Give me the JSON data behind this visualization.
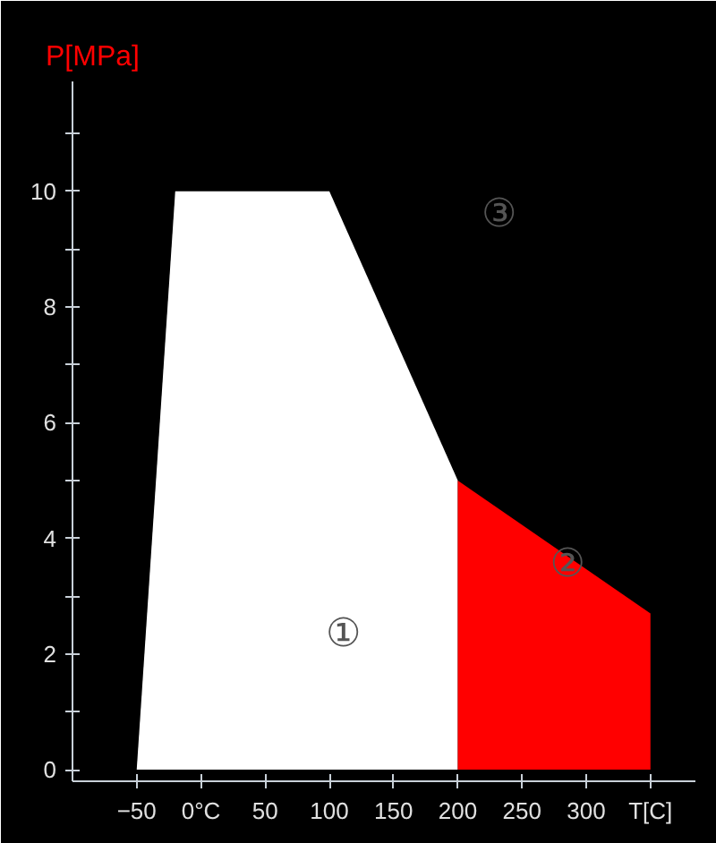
{
  "chart_data": {
    "type": "area",
    "ylabel": "P[MPa]",
    "grid": false,
    "xlim": [
      -100,
      385
    ],
    "ylim": [
      -0.2,
      11.9
    ],
    "xticks": [
      -50,
      {
        "value": 0,
        "label": "0°C"
      },
      50,
      100,
      150,
      200,
      250,
      300,
      {
        "value": 350,
        "label": "T[C]"
      }
    ],
    "yticks": [
      0,
      {
        "value": 1,
        "label": null
      },
      2,
      {
        "value": 3,
        "label": null
      },
      4,
      {
        "value": 5,
        "label": null
      },
      6,
      {
        "value": 7,
        "label": null
      },
      8,
      {
        "value": 9,
        "label": null
      },
      10,
      {
        "value": 11,
        "label": null
      }
    ],
    "series": [
      {
        "color": "#ffffff",
        "x": [
          -50,
          -20,
          100,
          200
        ],
        "values": [
          0,
          10,
          10,
          5
        ]
      },
      {
        "color": "#ff0000",
        "x": [
          200,
          350
        ],
        "values": [
          5,
          2.7
        ]
      }
    ],
    "annotations": [
      "①",
      "②",
      "③"
    ]
  }
}
